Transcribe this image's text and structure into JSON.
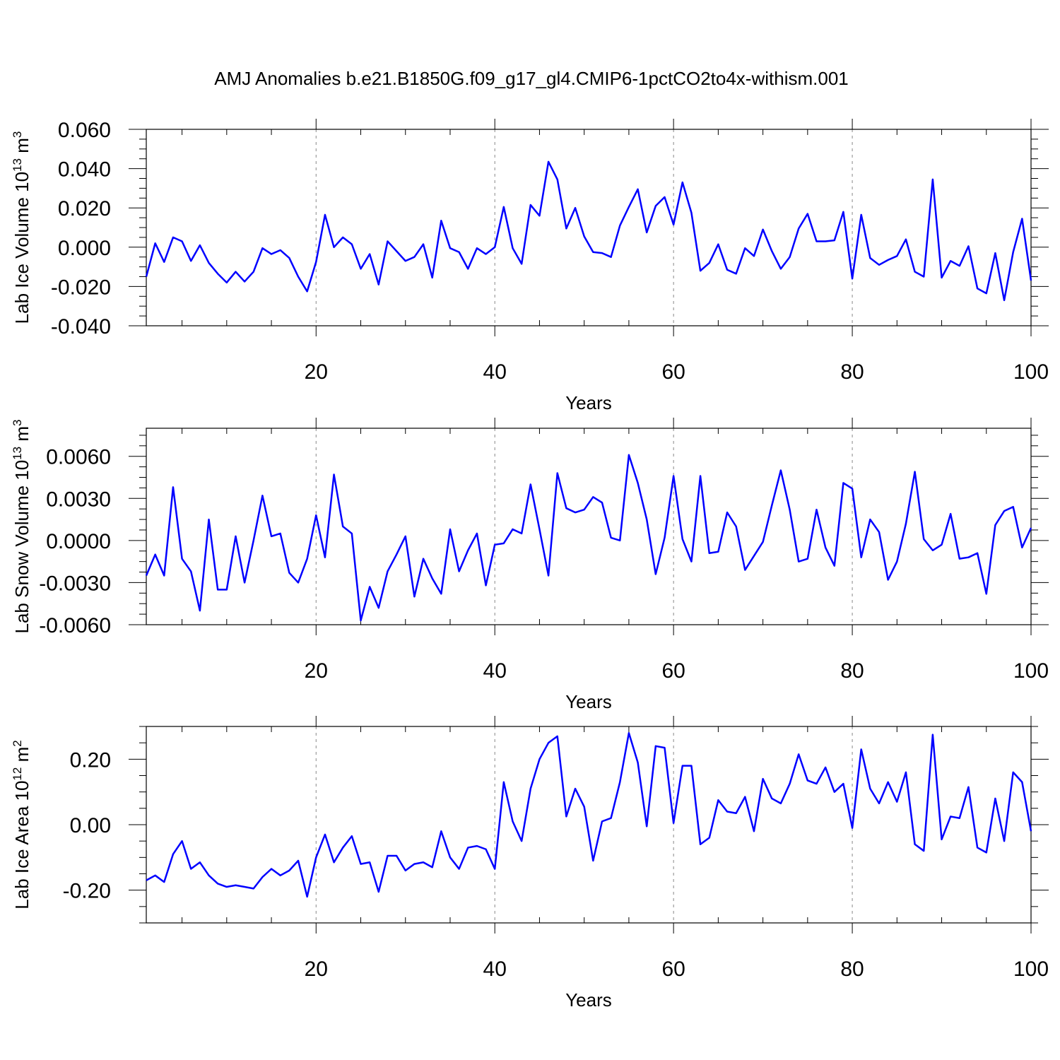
{
  "title": "AMJ Anomalies b.e21.B1850G.f09_g17_gl4.CMIP6-1pctCO2to4x-withism.001",
  "chart_data": [
    {
      "type": "line",
      "ylabel": "Lab Ice Volume",
      "ylabel_unit_base": "10",
      "ylabel_unit_exp": "13",
      "ylabel_unit_tail": " m",
      "ylabel_unit_tail_exp": "3",
      "xlabel": "Years",
      "xlim": [
        1,
        100
      ],
      "ylim": [
        -0.04,
        0.06
      ],
      "yticks": [
        -0.04,
        -0.02,
        0.0,
        0.02,
        0.04,
        0.06
      ],
      "ytick_labels": [
        "-0.040",
        "-0.020",
        "0.000",
        "0.020",
        "0.040",
        "0.060"
      ],
      "xticks": [
        20,
        40,
        60,
        80,
        100
      ],
      "xtick_labels": [
        "20",
        "40",
        "60",
        "80",
        "100"
      ],
      "grid_x": [
        20,
        40,
        60,
        80
      ],
      "color": "#0000ff",
      "x_start": 1,
      "values": [
        -0.015,
        0.002,
        -0.0075,
        0.005,
        0.003,
        -0.007,
        0.001,
        -0.008,
        -0.0135,
        -0.018,
        -0.0125,
        -0.0175,
        -0.0125,
        -0.0005,
        -0.0035,
        -0.0015,
        -0.0055,
        -0.015,
        -0.0225,
        -0.0075,
        0.0165,
        0.0,
        0.005,
        0.0015,
        -0.011,
        -0.0035,
        -0.019,
        0.003,
        -0.002,
        -0.007,
        -0.005,
        0.0015,
        -0.0155,
        0.0135,
        -0.0005,
        -0.0025,
        -0.011,
        -0.0005,
        -0.0035,
        0.0,
        0.0205,
        -0.0005,
        -0.0085,
        0.0215,
        0.016,
        0.0435,
        0.0345,
        0.0095,
        0.02,
        0.0055,
        -0.0025,
        -0.003,
        -0.005,
        0.011,
        0.0205,
        0.0295,
        0.0075,
        0.021,
        0.0255,
        0.0115,
        0.033,
        0.0175,
        -0.012,
        -0.008,
        0.0015,
        -0.0115,
        -0.0135,
        -0.0005,
        -0.0045,
        0.009,
        -0.002,
        -0.011,
        -0.005,
        0.0095,
        0.017,
        0.003,
        0.003,
        0.0035,
        0.018,
        -0.016,
        0.0165,
        -0.0055,
        -0.009,
        -0.0065,
        -0.0045,
        0.004,
        -0.0125,
        -0.015,
        0.0345,
        -0.0155,
        -0.007,
        -0.0095,
        0.0005,
        -0.021,
        -0.0235,
        -0.003,
        -0.027,
        -0.0025,
        0.0145,
        -0.017
      ]
    },
    {
      "type": "line",
      "ylabel": "Lab Snow Volume",
      "ylabel_unit_base": "10",
      "ylabel_unit_exp": "13",
      "ylabel_unit_tail": " m",
      "ylabel_unit_tail_exp": "3",
      "xlabel": "Years",
      "xlim": [
        1,
        100
      ],
      "ylim": [
        -0.006,
        0.008
      ],
      "yticks": [
        -0.006,
        -0.003,
        0.0,
        0.003,
        0.006
      ],
      "ytick_labels": [
        "-0.0060",
        "-0.0030",
        "0.0000",
        "0.0030",
        "0.0060"
      ],
      "xticks": [
        20,
        40,
        60,
        80,
        100
      ],
      "xtick_labels": [
        "20",
        "40",
        "60",
        "80",
        "100"
      ],
      "grid_x": [
        20,
        40,
        60,
        80
      ],
      "color": "#0000ff",
      "x_start": 1,
      "values": [
        -0.0025,
        -0.001,
        -0.0025,
        0.0038,
        -0.0013,
        -0.0022,
        -0.005,
        0.0015,
        -0.0035,
        -0.0035,
        0.0003,
        -0.003,
        0.0,
        0.0032,
        0.0003,
        0.0005,
        -0.0023,
        -0.003,
        -0.0013,
        0.0018,
        -0.0012,
        0.0047,
        0.001,
        0.0005,
        -0.0057,
        -0.0033,
        -0.0048,
        -0.0022,
        -0.001,
        0.0003,
        -0.004,
        -0.0013,
        -0.0027,
        -0.0038,
        0.0008,
        -0.0022,
        -0.0007,
        0.0005,
        -0.0032,
        -0.0003,
        -0.0002,
        0.0008,
        0.0005,
        0.004,
        0.0008,
        -0.0025,
        0.0048,
        0.0023,
        0.002,
        0.0022,
        0.0031,
        0.0027,
        0.0002,
        0.0,
        0.0061,
        0.0041,
        0.0015,
        -0.0024,
        0.0002,
        0.0046,
        0.0001,
        -0.0015,
        0.0046,
        -0.0009,
        -0.0008,
        0.002,
        0.001,
        -0.0021,
        -0.0011,
        -0.0001,
        0.0025,
        0.005,
        0.0022,
        -0.0015,
        -0.0013,
        0.0022,
        -0.0005,
        -0.0018,
        0.0041,
        0.0037,
        -0.0012,
        0.0015,
        0.0006,
        -0.0028,
        -0.0015,
        0.0012,
        0.0049,
        0.0001,
        -0.0007,
        -0.0003,
        0.0019,
        -0.0013,
        -0.0012,
        -0.0009,
        -0.0038,
        0.0011,
        0.0021,
        0.0024,
        -0.0005,
        0.0009
      ]
    },
    {
      "type": "line",
      "ylabel": "Lab Ice Area",
      "ylabel_unit_base": "10",
      "ylabel_unit_exp": "12",
      "ylabel_unit_tail": " m",
      "ylabel_unit_tail_exp": "2",
      "xlabel": "Years",
      "xlim": [
        1,
        100
      ],
      "ylim": [
        -0.3,
        0.3
      ],
      "yticks": [
        -0.2,
        0.0,
        0.2
      ],
      "ytick_labels": [
        "-0.20",
        "0.00",
        "0.20"
      ],
      "xticks": [
        20,
        40,
        60,
        80,
        100
      ],
      "xtick_labels": [
        "20",
        "40",
        "60",
        "80",
        "100"
      ],
      "grid_x": [
        20,
        40,
        60,
        80
      ],
      "color": "#0000ff",
      "x_start": 1,
      "values": [
        -0.17,
        -0.155,
        -0.175,
        -0.09,
        -0.05,
        -0.135,
        -0.115,
        -0.155,
        -0.18,
        -0.19,
        -0.185,
        -0.19,
        -0.195,
        -0.16,
        -0.135,
        -0.155,
        -0.14,
        -0.11,
        -0.22,
        -0.1,
        -0.03,
        -0.115,
        -0.07,
        -0.035,
        -0.12,
        -0.115,
        -0.205,
        -0.095,
        -0.095,
        -0.14,
        -0.12,
        -0.115,
        -0.13,
        -0.02,
        -0.1,
        -0.135,
        -0.07,
        -0.065,
        -0.075,
        -0.135,
        0.13,
        0.01,
        -0.05,
        0.11,
        0.2,
        0.25,
        0.27,
        0.025,
        0.11,
        0.055,
        -0.11,
        0.01,
        0.02,
        0.13,
        0.28,
        0.19,
        -0.005,
        0.24,
        0.235,
        0.005,
        0.18,
        0.18,
        -0.06,
        -0.04,
        0.075,
        0.04,
        0.035,
        0.085,
        -0.02,
        0.14,
        0.08,
        0.065,
        0.125,
        0.215,
        0.135,
        0.125,
        0.175,
        0.1,
        0.125,
        -0.01,
        0.23,
        0.11,
        0.065,
        0.13,
        0.07,
        0.16,
        -0.06,
        -0.08,
        0.275,
        -0.045,
        0.025,
        0.02,
        0.115,
        -0.07,
        -0.085,
        0.08,
        -0.05,
        0.16,
        0.13,
        -0.02
      ]
    }
  ]
}
